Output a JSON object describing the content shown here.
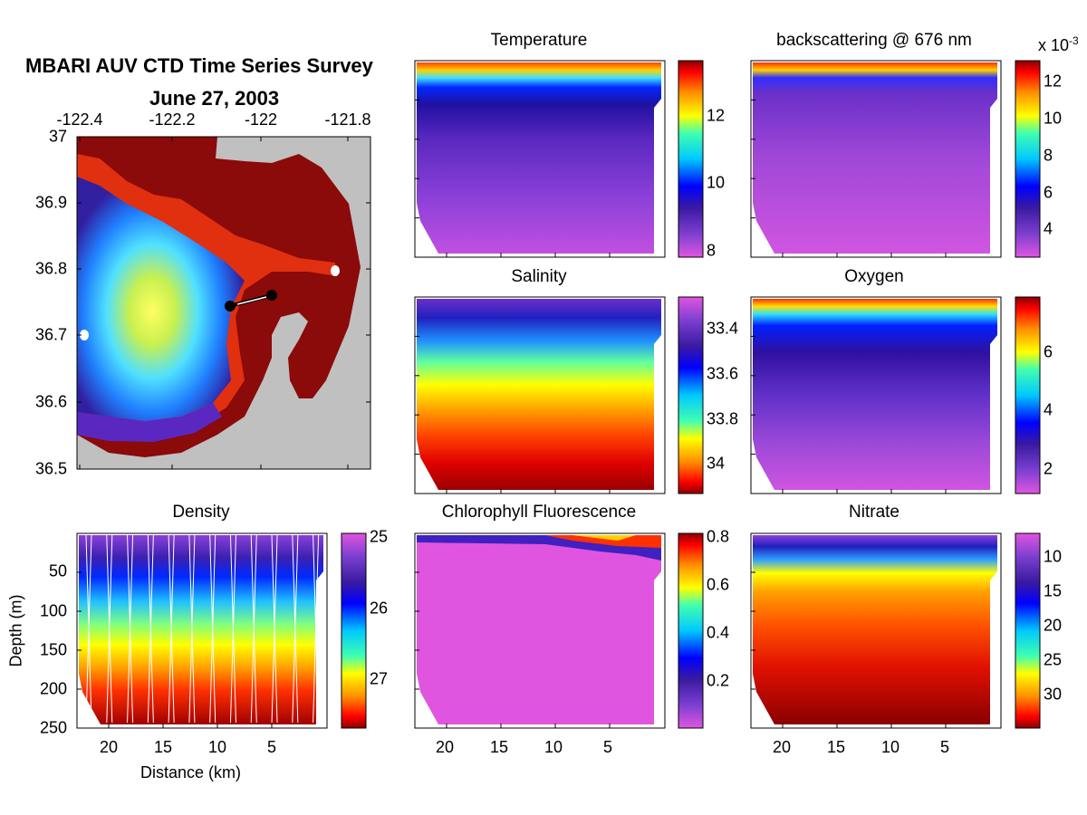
{
  "figure": {
    "title_line1": "MBARI AUV CTD Time Series Survey",
    "title_line2": "June 27, 2003"
  },
  "colors": {
    "jet_reversed_scale": [
      "#8b0000",
      "#ff0000",
      "#ff8c00",
      "#ffff00",
      "#00ffff",
      "#0000ff",
      "#3a1aa0",
      "#7b3fd0",
      "#e055e0"
    ],
    "background": "#ffffff",
    "land_mask": "#c0c0c0"
  },
  "map": {
    "lon_ticks": [
      "-122.4",
      "-122.2",
      "-122",
      "-121.8"
    ],
    "lat_ticks": [
      "37",
      "36.9",
      "36.8",
      "36.7",
      "36.6",
      "36.5"
    ]
  },
  "panels": [
    {
      "id": "temperature",
      "title": "Temperature",
      "cbar_ticks": [
        "12",
        "10",
        "8"
      ],
      "cbar_exponent": ""
    },
    {
      "id": "backscattering",
      "title": "backscattering @ 676 nm",
      "cbar_ticks": [
        "12",
        "10",
        "8",
        "6",
        "4"
      ],
      "cbar_exponent": "x 10-3"
    },
    {
      "id": "salinity",
      "title": "Salinity",
      "cbar_ticks": [
        "33.4",
        "33.6",
        "33.8",
        "34"
      ],
      "cbar_exponent": ""
    },
    {
      "id": "oxygen",
      "title": "Oxygen",
      "cbar_ticks": [
        "6",
        "4",
        "2"
      ],
      "cbar_exponent": ""
    },
    {
      "id": "density",
      "title": "Density",
      "cbar_ticks": [
        "25",
        "26",
        "27"
      ],
      "cbar_exponent": ""
    },
    {
      "id": "chlorophyll",
      "title": "Chlorophyll Fluorescence",
      "cbar_ticks": [
        "0.8",
        "0.6",
        "0.4",
        "0.2"
      ],
      "cbar_exponent": ""
    },
    {
      "id": "nitrate",
      "title": "Nitrate",
      "cbar_ticks": [
        "10",
        "15",
        "20",
        "25",
        "30"
      ],
      "cbar_exponent": ""
    }
  ],
  "section_axes": {
    "x_ticks": [
      "20",
      "15",
      "10",
      "5"
    ],
    "depth_ticks": [
      "50",
      "100",
      "150",
      "200",
      "250"
    ],
    "xlabel": "Distance (km)",
    "ylabel": "Depth (m)"
  },
  "chart_data": [
    {
      "type": "heatmap",
      "title": "Temperature",
      "x_dir": "reverse",
      "depth_range": [
        0,
        250
      ],
      "colorbar_range": [
        7.8,
        13.5
      ],
      "colorbar_ticks": [
        12,
        10,
        8
      ],
      "profile": [
        13.2,
        11.5,
        9.4,
        8.9,
        8.7,
        8.5,
        8.3,
        8.2,
        8.0
      ]
    },
    {
      "type": "heatmap",
      "title": "backscattering @ 676 nm",
      "x_dir": "reverse",
      "depth_range": [
        0,
        250
      ],
      "colorbar_range": [
        2.5,
        13
      ],
      "colorbar_exponent": -3,
      "colorbar_ticks": [
        12,
        10,
        8,
        6,
        4
      ],
      "profile": [
        11,
        5.5,
        4.2,
        3.9,
        3.7,
        3.5,
        3.3,
        3.1,
        3.0
      ]
    },
    {
      "type": "heatmap",
      "title": "Salinity",
      "x_dir": "reverse",
      "depth_range": [
        0,
        250
      ],
      "colorbar_range": [
        33.3,
        34.05
      ],
      "colorbar_ticks": [
        33.4,
        33.6,
        33.8,
        34
      ],
      "profile": [
        33.35,
        33.5,
        33.65,
        33.78,
        33.85,
        33.9,
        33.95,
        33.98,
        34.0
      ]
    },
    {
      "type": "heatmap",
      "title": "Oxygen",
      "x_dir": "reverse",
      "depth_range": [
        0,
        250
      ],
      "colorbar_range": [
        1.2,
        7.8
      ],
      "colorbar_ticks": [
        6,
        4,
        2
      ],
      "profile": [
        7,
        4.5,
        3.2,
        2.8,
        2.5,
        2.3,
        2.0,
        1.8,
        1.6
      ]
    },
    {
      "type": "heatmap",
      "title": "Density",
      "x_dir": "reverse",
      "depth_range": [
        0,
        250
      ],
      "colorbar_range": [
        24.9,
        27.6
      ],
      "colorbar_ticks": [
        25,
        26,
        27
      ],
      "colorbar_reversed": true,
      "profile": [
        25.2,
        25.6,
        25.9,
        26.2,
        26.5,
        26.8,
        27.0,
        27.2,
        27.4
      ]
    },
    {
      "type": "heatmap",
      "title": "Chlorophyll Fluorescence",
      "x_dir": "reverse",
      "depth_range": [
        0,
        250
      ],
      "colorbar_range": [
        0,
        0.82
      ],
      "colorbar_ticks": [
        0.8,
        0.6,
        0.4,
        0.2
      ],
      "profile": [
        0.5,
        0.02,
        0.02,
        0.02,
        0.02,
        0.02,
        0.02,
        0.02,
        0.02
      ]
    },
    {
      "type": "heatmap",
      "title": "Nitrate",
      "x_dir": "reverse",
      "depth_range": [
        0,
        250
      ],
      "colorbar_range": [
        7,
        35.5
      ],
      "colorbar_ticks": [
        10,
        15,
        20,
        25,
        30
      ],
      "colorbar_reversed": true,
      "profile": [
        10,
        18,
        26,
        29,
        31,
        32,
        33,
        34,
        34.5
      ]
    }
  ]
}
